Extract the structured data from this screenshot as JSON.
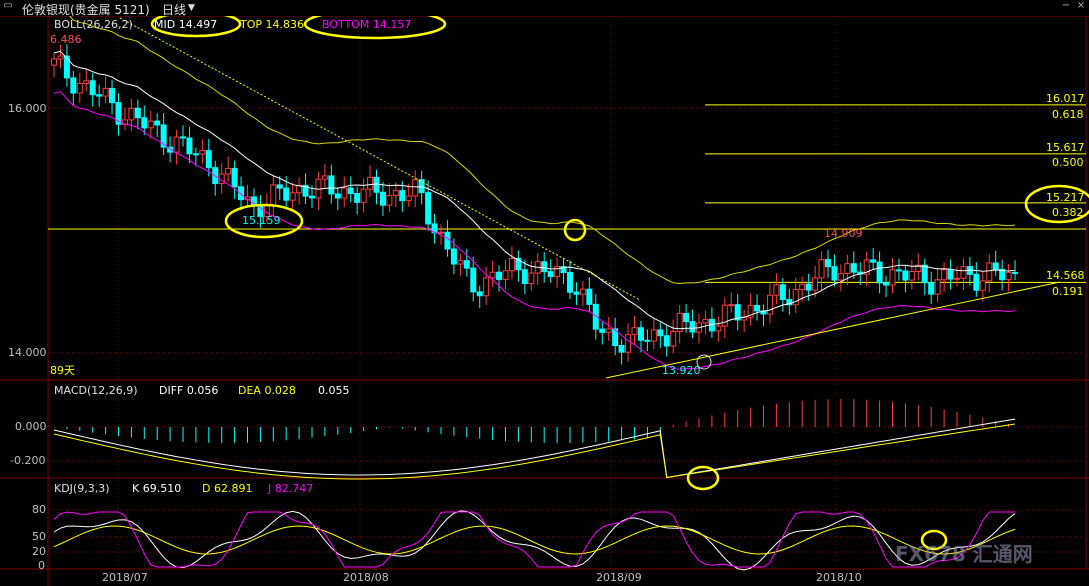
{
  "window": {
    "title": "伦敦银现(贵金属 5121)",
    "period": "日线",
    "ctrl_minimize": "−",
    "ctrl_close": "×"
  },
  "boll": {
    "label": "BOLL(26,26,2)",
    "mid": "MID 14.497",
    "top": "TOP 14.836",
    "bottom": "BOTTOM 14.157"
  },
  "price_axis": {
    "ticks": [
      "16.000",
      "14.000"
    ]
  },
  "annotations": {
    "high_left": "6.486",
    "low_july": "15.159",
    "low_sep": "13.920",
    "high_oct": "14.909",
    "days": "89天"
  },
  "fib_levels": [
    {
      "price": "16.017",
      "ratio": "0.618"
    },
    {
      "price": "15.617",
      "ratio": "0.500"
    },
    {
      "price": "15.217",
      "ratio": "0.382"
    },
    {
      "price": "14.568",
      "ratio": "0.191"
    }
  ],
  "macd": {
    "label": "MACD(12,26,9)",
    "diff": "DIFF 0.056",
    "dea": "DEA 0.028",
    "macd": "0.055",
    "ticks": [
      "0.000",
      "-0.200"
    ]
  },
  "kdj": {
    "label": "KDJ(9,3,3)",
    "k": "K 69.510",
    "d": "D 62.891",
    "j": "J 82.747",
    "ticks": [
      "80",
      "50",
      "20",
      "0"
    ]
  },
  "dates": [
    "2018/07",
    "2018/08",
    "2018/09",
    "2018/10"
  ],
  "watermark": "FX678 汇通网",
  "colors": {
    "up": "#ff3c3c",
    "down": "#00ffff",
    "mid": "#ffffff",
    "top": "#d8d800",
    "bottom": "#ff00ff",
    "highlight": "#ffff00",
    "grid": "#800000"
  }
}
